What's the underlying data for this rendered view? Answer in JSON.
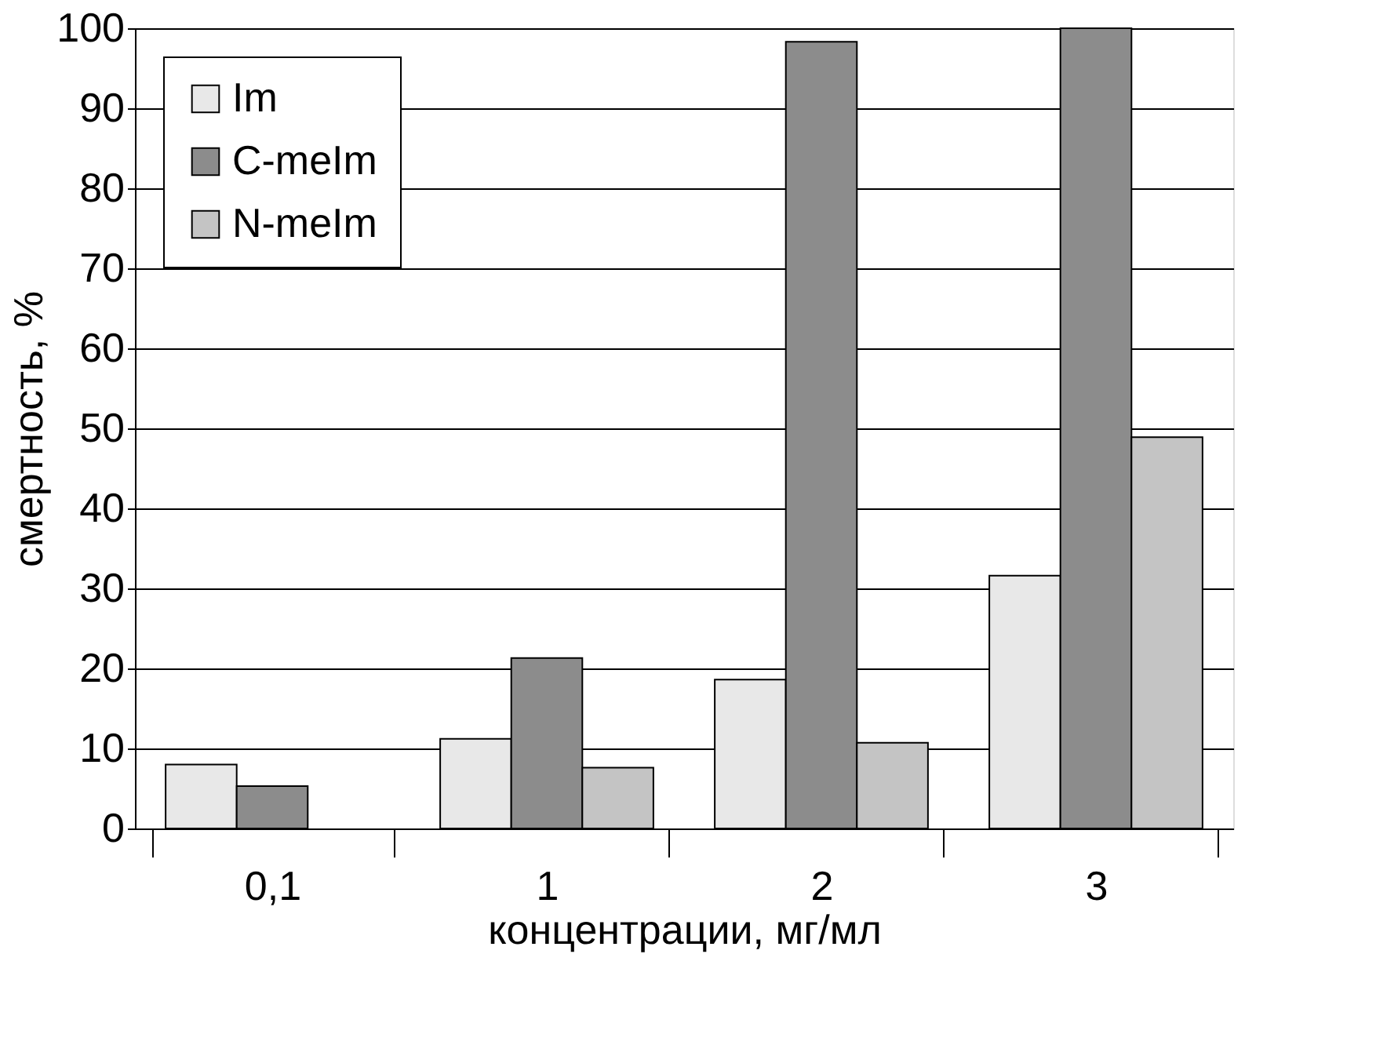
{
  "chart_data": {
    "type": "bar",
    "xlabel": "концентрации, мг/мл",
    "ylabel": "смертность, %",
    "categories": [
      "0,1",
      "1",
      "2",
      "3"
    ],
    "series": [
      {
        "name": "Im",
        "color": "#e8e8e8",
        "values": [
          8,
          11.2,
          18.6,
          31.6
        ]
      },
      {
        "name": "C-meIm",
        "color": "#8c8c8c",
        "values": [
          5.3,
          21.3,
          98.3,
          100
        ]
      },
      {
        "name": "N-meIm",
        "color": "#c4c4c4",
        "values": [
          null,
          7.6,
          10.7,
          48.9
        ]
      }
    ],
    "ylim": [
      0,
      100
    ],
    "yticks": [
      0,
      10,
      20,
      30,
      40,
      50,
      60,
      70,
      80,
      90,
      100
    ],
    "grid": "y",
    "legend": "top left"
  }
}
